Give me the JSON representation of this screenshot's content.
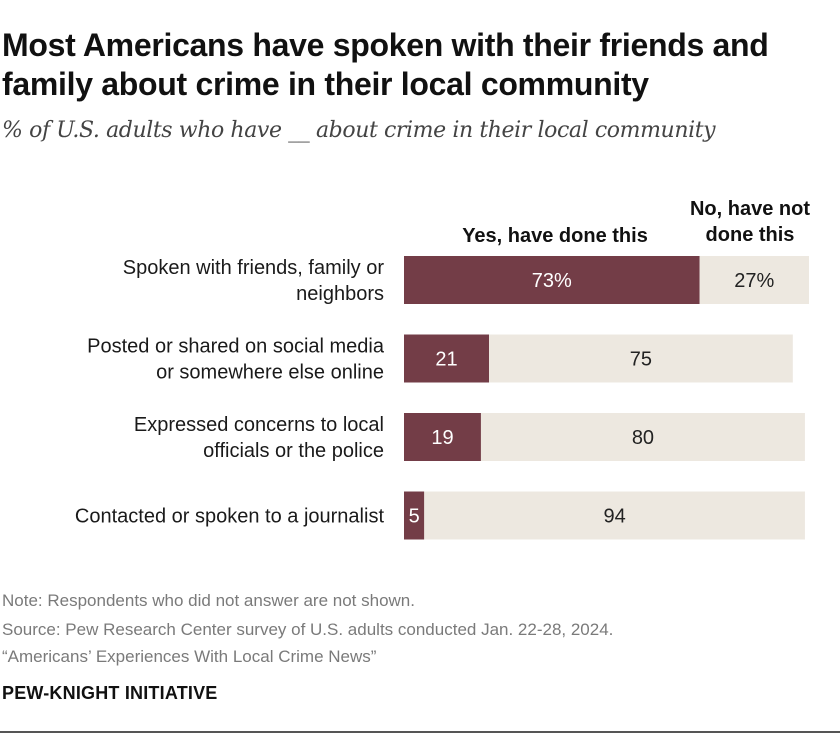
{
  "title": "Most Americans have spoken with their friends and family about crime in their local community",
  "subtitle": "% of U.S. adults who have __ about crime in their local community",
  "chart_data": {
    "type": "bar",
    "orientation": "horizontal",
    "stacked": true,
    "categories": [
      [
        "Spoken with friends, family or",
        "neighbors"
      ],
      [
        "Posted or shared on social media",
        "or somewhere else online"
      ],
      [
        "Expressed concerns to local",
        "officials or the police"
      ],
      [
        "Contacted or spoken to a journalist"
      ]
    ],
    "series": [
      {
        "name": "Yes, have done this",
        "values": [
          73,
          21,
          19,
          5
        ],
        "labels": [
          "73%",
          "21",
          "19",
          "5"
        ],
        "color": "#733d47"
      },
      {
        "name": "No, have not done this",
        "values": [
          27,
          75,
          80,
          94
        ],
        "labels": [
          "27%",
          "75",
          "80",
          "94"
        ],
        "color": "#ede8e0"
      }
    ],
    "xlim": [
      0,
      100
    ],
    "legend": "column headers above bars"
  },
  "headers": {
    "yes": "Yes, have done this",
    "no_line1": "No, have not",
    "no_line2": "done this"
  },
  "notes": {
    "note": "Note: Respondents who did not answer are not shown.",
    "source": "Source: Pew Research Center survey of U.S. adults conducted Jan. 22-28, 2024.",
    "report": "“Americans’ Experiences With Local Crime News”"
  },
  "brand": "PEW-KNIGHT INITIATIVE"
}
